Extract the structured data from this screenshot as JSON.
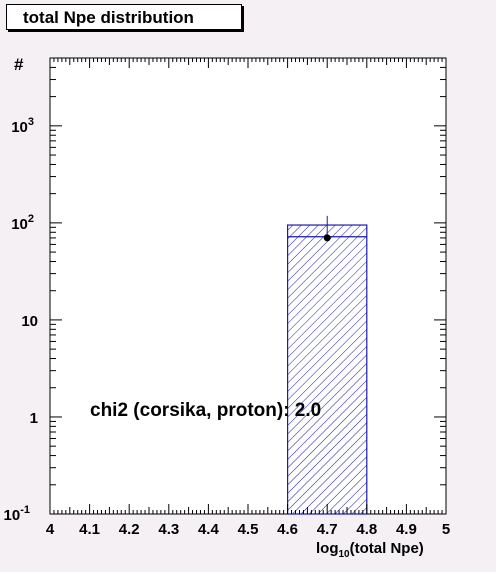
{
  "chart_data": {
    "type": "bar",
    "title": "total Npe distribution",
    "xlabel": "log10(total Npe)",
    "ylabel": "#",
    "xlim": [
      4.0,
      5.0
    ],
    "ylim": [
      0.1,
      5000
    ],
    "yscale": "log",
    "grid": false,
    "x_ticks": [
      "4",
      "4.1",
      "4.2",
      "4.3",
      "4.4",
      "4.5",
      "4.6",
      "4.7",
      "4.8",
      "4.9",
      "5"
    ],
    "x_tick_values": [
      4.0,
      4.1,
      4.2,
      4.3,
      4.4,
      4.5,
      4.6,
      4.7,
      4.8,
      4.9,
      5.0
    ],
    "y_tick_values": [
      0.1,
      1,
      10,
      100,
      1000
    ],
    "series": [
      {
        "kind": "histogram",
        "bins": [
          {
            "x0": 4.6,
            "x1": 4.8,
            "y": 95
          }
        ],
        "inner_line": 72,
        "color": "#1a1ab0",
        "fill": "hatched"
      },
      {
        "kind": "points",
        "points": [
          {
            "x": 4.7,
            "y": 70,
            "err_hi": 118
          }
        ],
        "color": "#000000"
      }
    ],
    "annotation": "chi2 (corsika, proton): 2.0"
  }
}
